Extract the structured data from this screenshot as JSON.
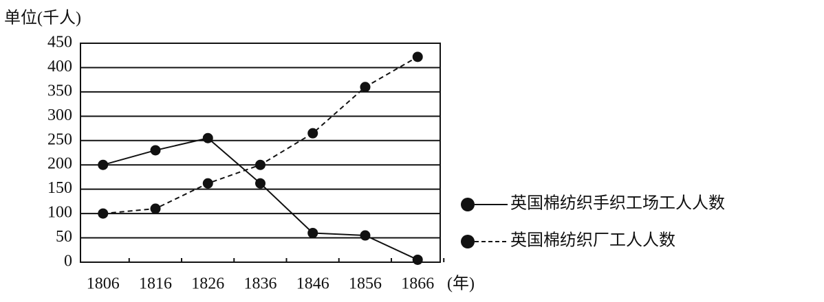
{
  "chart_data": {
    "type": "line",
    "ylabel": "单位(千人)",
    "xlabel": "(年)",
    "x": [
      1806,
      1816,
      1826,
      1836,
      1846,
      1856,
      1866
    ],
    "xlim": [
      1801.7,
      1870.3
    ],
    "xticks": [
      1806,
      1816,
      1826,
      1836,
      1846,
      1856,
      1866
    ],
    "ylim": [
      0,
      450
    ],
    "yticks": [
      0,
      50,
      100,
      150,
      200,
      250,
      300,
      350,
      400,
      450
    ],
    "grid": true,
    "legend": "right",
    "series": [
      {
        "name": "英国棉纺织手织工场工人人数",
        "color": "#111111",
        "style": "solid",
        "values": [
          200,
          230,
          255,
          162,
          60,
          55,
          5
        ]
      },
      {
        "name": "英国棉纺织厂工人人数",
        "color": "#111111",
        "style": "dashed",
        "values": [
          100,
          110,
          162,
          200,
          265,
          360,
          422
        ]
      }
    ]
  }
}
